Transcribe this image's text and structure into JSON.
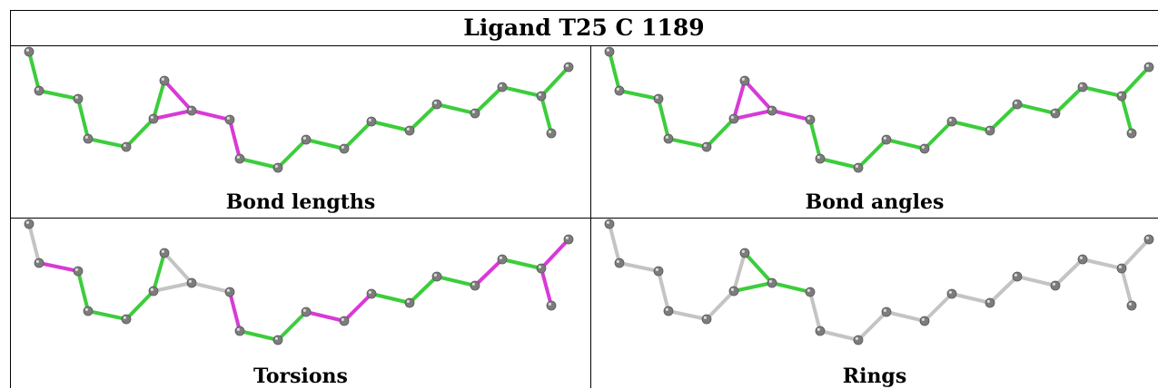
{
  "title": "Ligand T25 C 1189",
  "colors": {
    "pass": "#3ccd3c",
    "fail": "#d83ad8",
    "neutral": "#c4c4c4",
    "atom": "#7c7c7c"
  },
  "panels": [
    {
      "caption": "Bond lengths",
      "bond_status": [
        "pass",
        "pass",
        "pass",
        "pass",
        "pass",
        "pass",
        "fail",
        "fail",
        "fail",
        "fail",
        "pass",
        "pass",
        "pass",
        "pass",
        "pass",
        "pass",
        "pass",
        "pass",
        "pass",
        "pass",
        "pass",
        "pass",
        "pass",
        "pass"
      ]
    },
    {
      "caption": "Bond angles",
      "bond_status": [
        "pass",
        "pass",
        "pass",
        "pass",
        "pass",
        "fail",
        "fail",
        "fail",
        "fail",
        "pass",
        "pass",
        "pass",
        "pass",
        "pass",
        "pass",
        "pass",
        "pass",
        "pass",
        "pass",
        "pass",
        "pass",
        "pass",
        "pass",
        "pass"
      ]
    },
    {
      "caption": "Torsions",
      "bond_status": [
        "neutral",
        "fail",
        "pass",
        "pass",
        "pass",
        "pass",
        "neutral",
        "neutral",
        "neutral",
        "fail",
        "pass",
        "pass",
        "fail",
        "fail",
        "pass",
        "pass",
        "pass",
        "fail",
        "pass",
        "fail",
        "fail",
        "neutral",
        "neutral",
        "neutral"
      ]
    },
    {
      "caption": "Rings",
      "bond_status": [
        "neutral",
        "neutral",
        "neutral",
        "neutral",
        "neutral",
        "neutral",
        "pass",
        "pass",
        "pass",
        "neutral",
        "neutral",
        "neutral",
        "neutral",
        "neutral",
        "neutral",
        "neutral",
        "neutral",
        "neutral",
        "neutral",
        "neutral",
        "neutral",
        "neutral",
        "neutral",
        "neutral"
      ]
    }
  ]
}
